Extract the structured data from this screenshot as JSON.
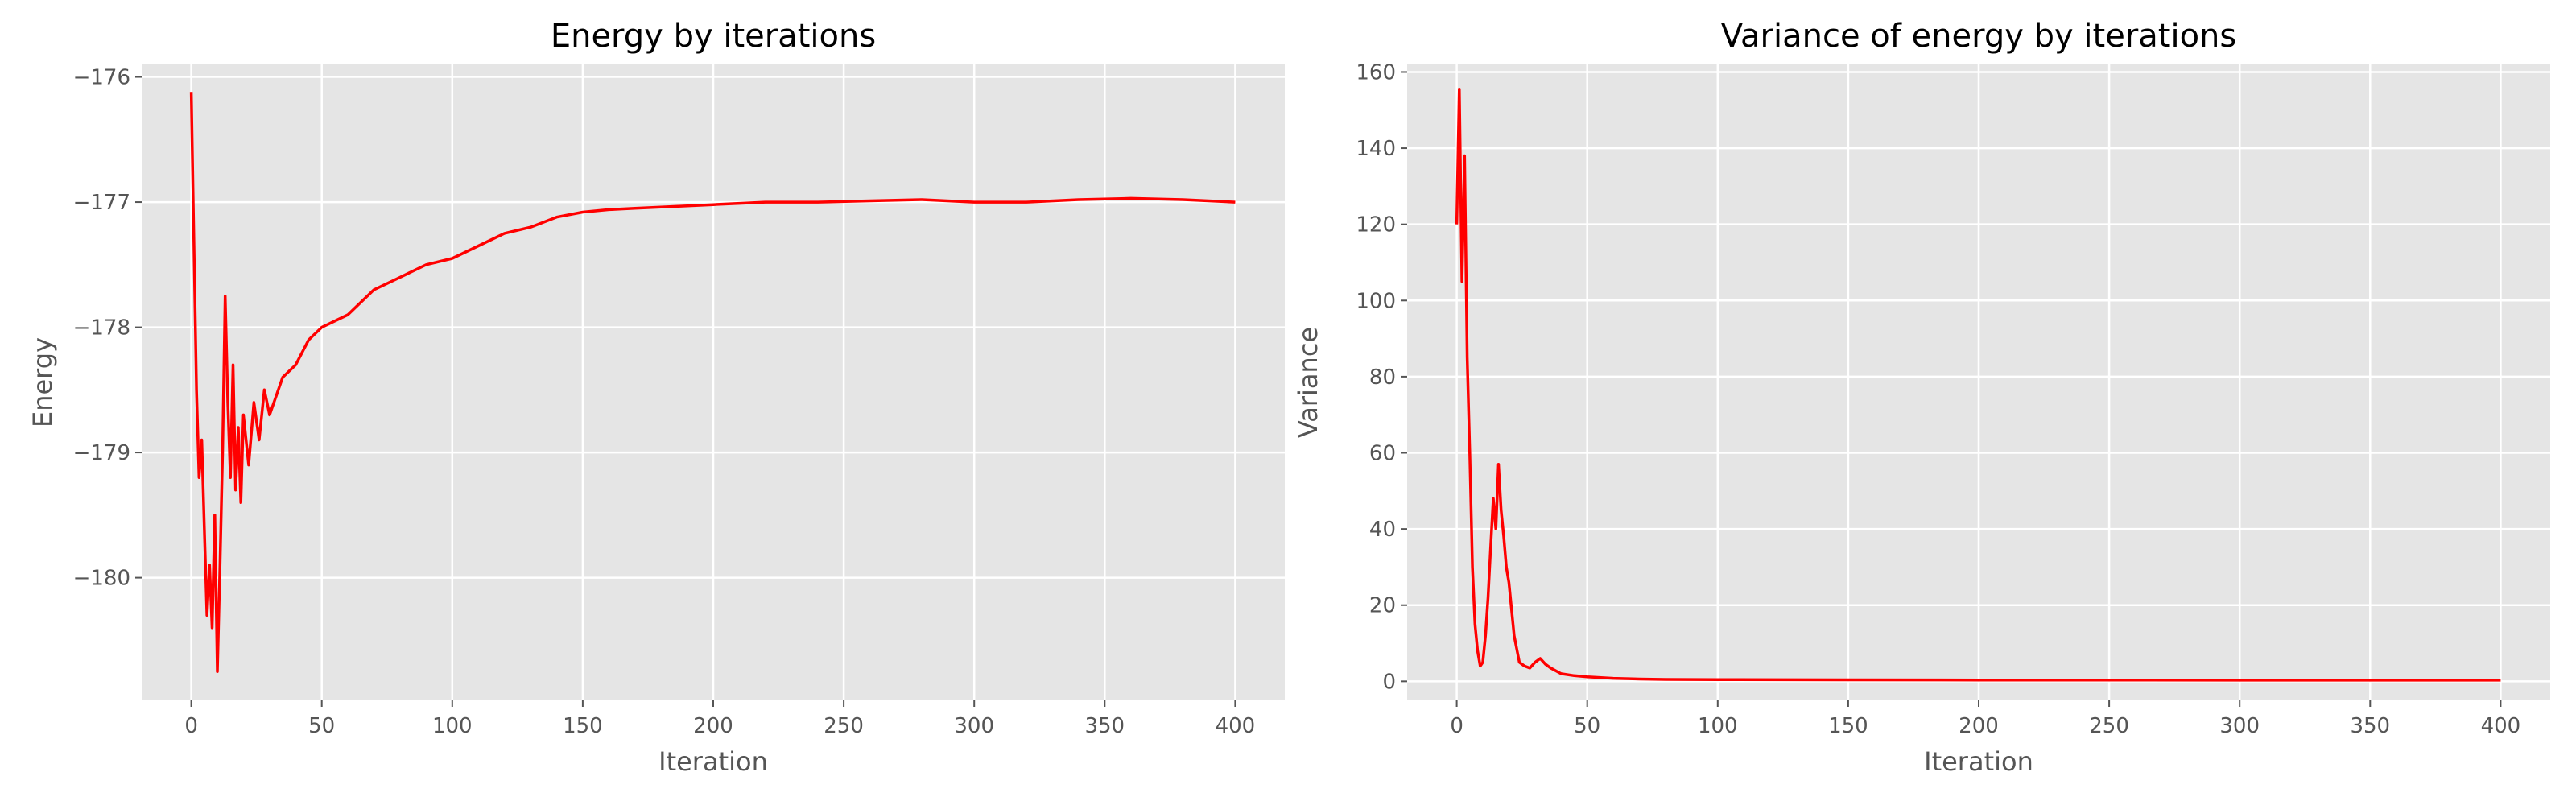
{
  "style": {
    "panel_bg": "#E5E5E5",
    "grid_color": "#FFFFFF",
    "line_color": "#FF0000",
    "tick_color": "#555555",
    "title_color": "#000000"
  },
  "chart_data": [
    {
      "type": "line",
      "title": "Energy by iterations",
      "xlabel": "Iteration",
      "ylabel": "Energy",
      "xlim": [
        -19,
        419
      ],
      "ylim": [
        -180.98,
        -175.9
      ],
      "xticks": [
        0,
        50,
        100,
        150,
        200,
        250,
        300,
        350,
        400
      ],
      "yticks": [
        -176,
        -177,
        -178,
        -179,
        -180
      ],
      "xtick_labels": [
        "0",
        "50",
        "100",
        "150",
        "200",
        "250",
        "300",
        "350",
        "400"
      ],
      "ytick_labels": [
        "−176",
        "−177",
        "−178",
        "−179",
        "−180"
      ],
      "grid": true,
      "series": [
        {
          "x": [
            0,
            1,
            2,
            3,
            4,
            5,
            6,
            7,
            8,
            9,
            10,
            11,
            12,
            13,
            14,
            15,
            16,
            17,
            18,
            19,
            20,
            22,
            24,
            26,
            28,
            30,
            35,
            40,
            45,
            50,
            60,
            70,
            80,
            90,
            100,
            110,
            120,
            130,
            140,
            150,
            160,
            170,
            180,
            190,
            200,
            220,
            240,
            260,
            280,
            300,
            320,
            340,
            360,
            380,
            400
          ],
          "y": [
            -176.12,
            -177.3,
            -178.5,
            -179.2,
            -178.9,
            -179.6,
            -180.3,
            -179.9,
            -180.4,
            -179.5,
            -180.75,
            -179.9,
            -179.0,
            -177.75,
            -178.6,
            -179.2,
            -178.3,
            -179.3,
            -178.8,
            -179.4,
            -178.7,
            -179.1,
            -178.6,
            -178.9,
            -178.5,
            -178.7,
            -178.4,
            -178.3,
            -178.1,
            -178.0,
            -177.9,
            -177.7,
            -177.6,
            -177.5,
            -177.45,
            -177.35,
            -177.25,
            -177.2,
            -177.12,
            -177.08,
            -177.06,
            -177.05,
            -177.04,
            -177.03,
            -177.02,
            -177.0,
            -177.0,
            -176.99,
            -176.98,
            -177.0,
            -177.0,
            -176.98,
            -176.97,
            -176.98,
            -177.0
          ]
        }
      ]
    },
    {
      "type": "line",
      "title": "Variance of energy by iterations",
      "xlabel": "Iteration",
      "ylabel": "Variance",
      "xlim": [
        -19,
        419
      ],
      "ylim": [
        -5,
        162
      ],
      "xticks": [
        0,
        50,
        100,
        150,
        200,
        250,
        300,
        350,
        400
      ],
      "yticks": [
        0,
        20,
        40,
        60,
        80,
        100,
        120,
        140,
        160
      ],
      "xtick_labels": [
        "0",
        "50",
        "100",
        "150",
        "200",
        "250",
        "300",
        "350",
        "400"
      ],
      "ytick_labels": [
        "0",
        "20",
        "40",
        "60",
        "80",
        "100",
        "120",
        "140",
        "160"
      ],
      "grid": true,
      "series": [
        {
          "x": [
            0,
            1,
            2,
            3,
            4,
            5,
            6,
            7,
            8,
            9,
            10,
            11,
            12,
            13,
            14,
            15,
            16,
            17,
            18,
            19,
            20,
            22,
            24,
            26,
            28,
            30,
            32,
            34,
            36,
            40,
            45,
            50,
            60,
            70,
            80,
            100,
            150,
            200,
            250,
            300,
            350,
            400
          ],
          "y": [
            120,
            155.5,
            105,
            138,
            85,
            60,
            30,
            15,
            8,
            4,
            5,
            12,
            22,
            35,
            48,
            40,
            57,
            45,
            38,
            30,
            26,
            12,
            5,
            4,
            3.5,
            5,
            6,
            4.5,
            3.5,
            2,
            1.5,
            1.2,
            0.8,
            0.6,
            0.5,
            0.45,
            0.4,
            0.35,
            0.35,
            0.3,
            0.3,
            0.3
          ]
        }
      ]
    }
  ]
}
